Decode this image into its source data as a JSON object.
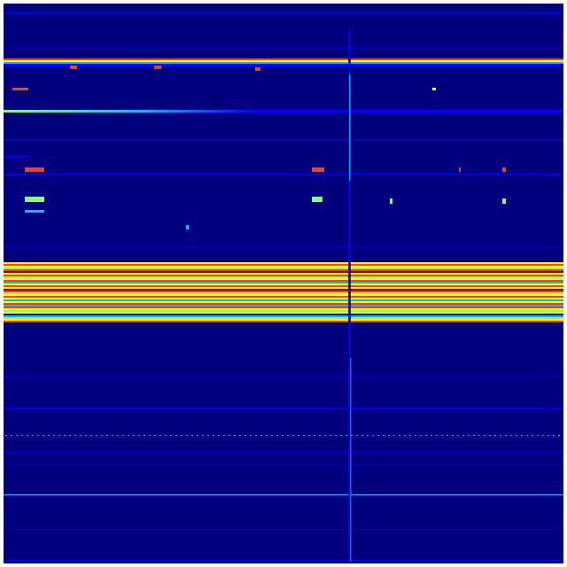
{
  "colormap": {
    "name": "jet",
    "background": "#00007f",
    "low": "#0000ff",
    "mid_low": "#00bfff",
    "mid": "#7fff7f",
    "mid_high": "#ffff00",
    "high": "#ff4000",
    "peak": "#8b0000"
  }
}
